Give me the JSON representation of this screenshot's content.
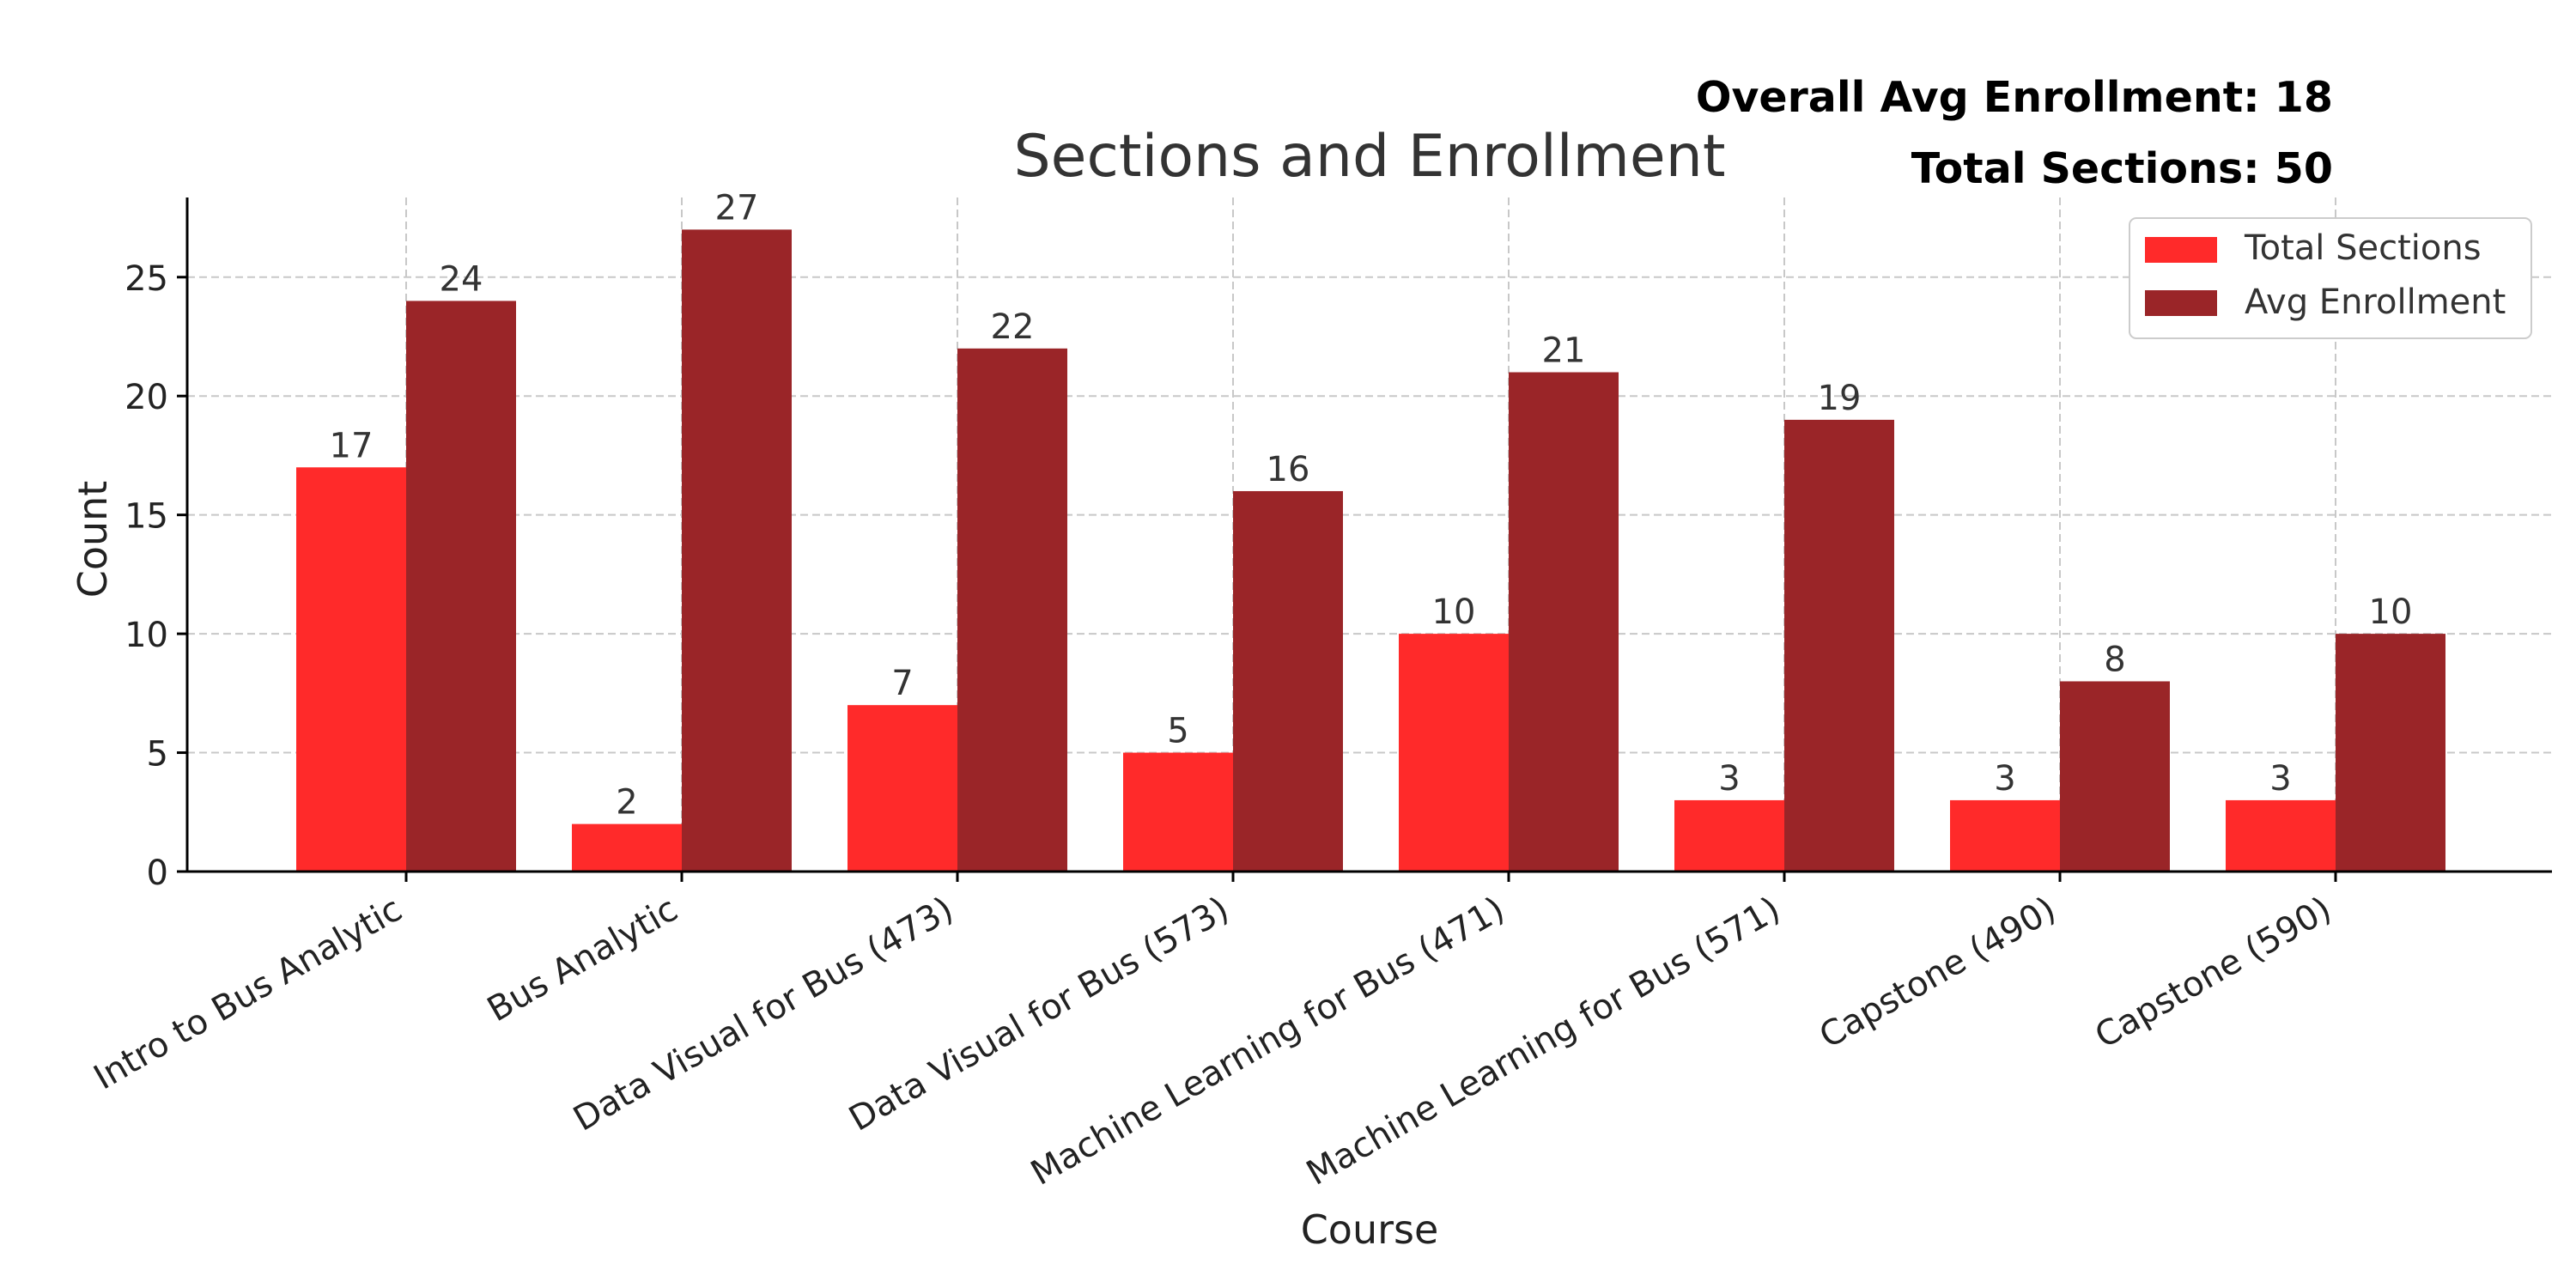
{
  "chart_data": {
    "type": "bar",
    "title": "Sections and Enrollment",
    "xlabel": "Course",
    "ylabel": "Count",
    "ylim": [
      0,
      28.35
    ],
    "yticks": [
      0,
      5,
      10,
      15,
      20,
      25
    ],
    "grid": true,
    "legend_position": "top-right",
    "categories": [
      "Intro to Bus Analytic",
      "Bus Analytic",
      "Data Visual for Bus (473)",
      "Data Visual for Bus (573)",
      "Machine Learning for Bus (471)",
      "Machine Learning for Bus (571)",
      "Capstone (490)",
      "Capstone (590)"
    ],
    "series": [
      {
        "name": "Total Sections",
        "color": "#ff2a2a",
        "values": [
          17,
          2,
          7,
          5,
          10,
          3,
          3,
          3
        ]
      },
      {
        "name": "Avg Enrollment",
        "color": "#9a2528",
        "values": [
          24,
          27,
          22,
          16,
          21,
          19,
          8,
          10
        ]
      }
    ],
    "annotations": [
      "Overall Avg Enrollment: 18",
      "Total Sections: 50"
    ]
  }
}
